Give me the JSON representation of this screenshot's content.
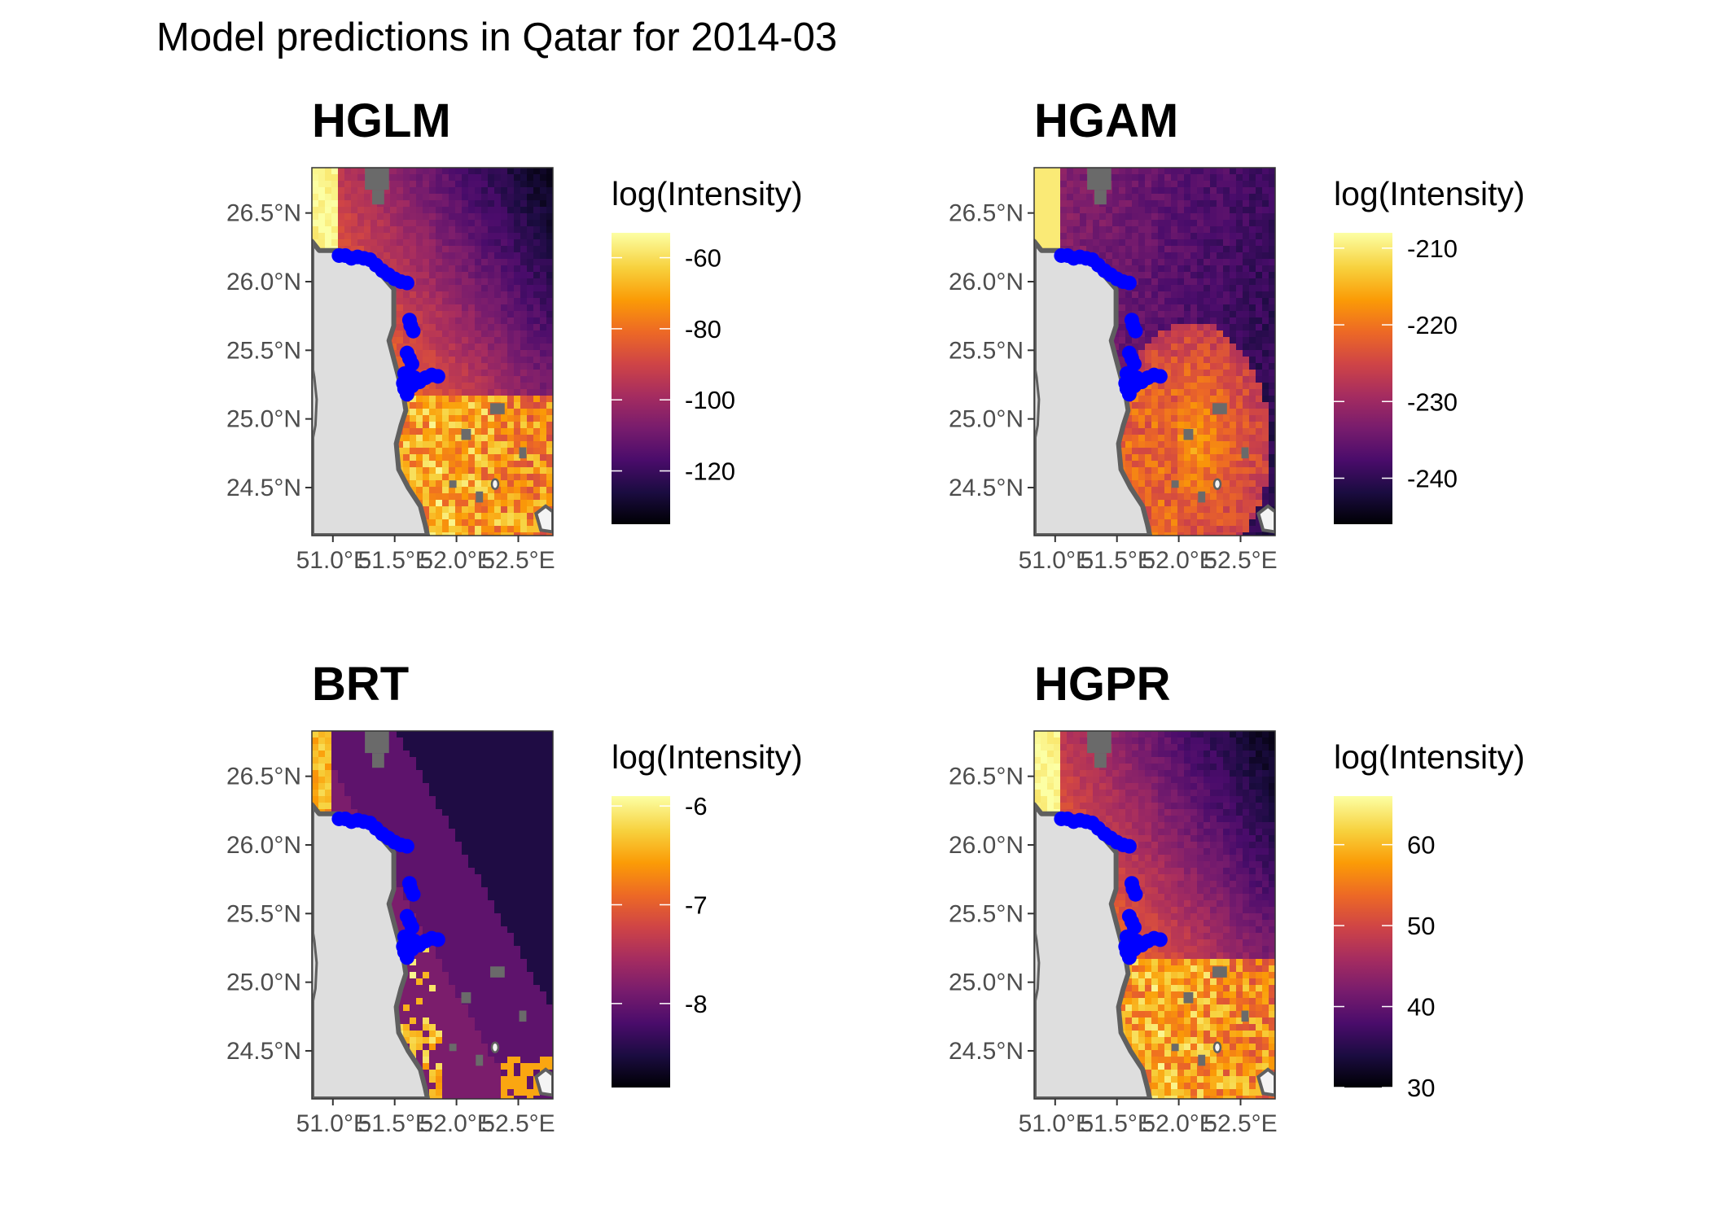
{
  "figure": {
    "title": "Model predictions in Qatar for 2014-03"
  },
  "panels": [
    {
      "title": "HGLM",
      "legend_title": "log(Intensity)",
      "legend_ticks": [
        "-60",
        "-80",
        "-100",
        "-120"
      ],
      "legend_tick_values": [
        -60,
        -80,
        -100,
        -120
      ],
      "legend_range": [
        -135,
        -53
      ],
      "x_ticks": [
        "51.0°E",
        "51.5°E",
        "52.0°E",
        "52.5°E"
      ],
      "y_ticks": [
        "26.5°N",
        "26.0°N",
        "25.5°N",
        "25.0°N",
        "24.5°N"
      ],
      "pattern": "west-hot"
    },
    {
      "title": "HGAM",
      "legend_title": "log(Intensity)",
      "legend_ticks": [
        "-210",
        "-220",
        "-230",
        "-240"
      ],
      "legend_tick_values": [
        -210,
        -220,
        -230,
        -240
      ],
      "legend_range": [
        -246,
        -208
      ],
      "x_ticks": [
        "51.0°E",
        "51.5°E",
        "52.0°E",
        "52.5°E"
      ],
      "y_ticks": [
        "26.5°N",
        "26.0°N",
        "25.5°N",
        "25.0°N",
        "24.5°N"
      ],
      "pattern": "south-hot"
    },
    {
      "title": "BRT",
      "legend_title": "log(Intensity)",
      "legend_ticks": [
        "-6",
        "-7",
        "-8"
      ],
      "legend_tick_values": [
        -6,
        -7,
        -8
      ],
      "legend_range": [
        -8.85,
        -5.9
      ],
      "x_ticks": [
        "51.0°E",
        "51.5°E",
        "52.0°E",
        "52.5°E"
      ],
      "y_ticks": [
        "26.5°N",
        "26.0°N",
        "25.5°N",
        "25.0°N",
        "24.5°N"
      ],
      "pattern": "banded"
    },
    {
      "title": "HGPR",
      "legend_title": "log(Intensity)",
      "legend_ticks": [
        "60",
        "50",
        "40",
        "30"
      ],
      "legend_tick_values": [
        60,
        50,
        40,
        30
      ],
      "legend_range": [
        30,
        66
      ],
      "x_ticks": [
        "51.0°E",
        "51.5°E",
        "52.0°E",
        "52.5°E"
      ],
      "y_ticks": [
        "26.5°N",
        "26.0°N",
        "25.5°N",
        "25.0°N",
        "24.5°N"
      ],
      "pattern": "west-hot"
    }
  ],
  "map_extent": {
    "lon": [
      50.83,
      52.78
    ],
    "lat": [
      24.15,
      26.83
    ]
  },
  "colors": {
    "land": "#dedede",
    "coastline": "#5f5f5f",
    "missing_cells": "#6a6a6a",
    "observation_points": "#0000ff",
    "palette": "inferno",
    "inferno_stops": [
      "#000004",
      "#1b0c41",
      "#4a0c6b",
      "#781c6d",
      "#a52c60",
      "#cf4446",
      "#ed6925",
      "#fb9b06",
      "#f7d13d",
      "#fcffa4"
    ]
  },
  "observation_points_lonlat": [
    [
      51.05,
      26.19
    ],
    [
      51.1,
      26.19
    ],
    [
      51.15,
      26.17
    ],
    [
      51.2,
      26.18
    ],
    [
      51.25,
      26.17
    ],
    [
      51.3,
      26.16
    ],
    [
      51.35,
      26.12
    ],
    [
      51.4,
      26.08
    ],
    [
      51.45,
      26.05
    ],
    [
      51.5,
      26.02
    ],
    [
      51.55,
      26.0
    ],
    [
      51.6,
      25.99
    ],
    [
      51.62,
      25.72
    ],
    [
      51.63,
      25.68
    ],
    [
      51.65,
      25.64
    ],
    [
      51.6,
      25.48
    ],
    [
      51.62,
      25.44
    ],
    [
      51.64,
      25.4
    ],
    [
      51.58,
      25.33
    ],
    [
      51.6,
      25.29
    ],
    [
      51.62,
      25.25
    ],
    [
      51.58,
      25.22
    ],
    [
      51.6,
      25.18
    ],
    [
      51.64,
      25.24
    ],
    [
      51.7,
      25.27
    ],
    [
      51.75,
      25.3
    ],
    [
      51.8,
      25.32
    ],
    [
      51.85,
      25.31
    ],
    [
      51.66,
      25.3
    ],
    [
      51.57,
      25.26
    ]
  ]
}
